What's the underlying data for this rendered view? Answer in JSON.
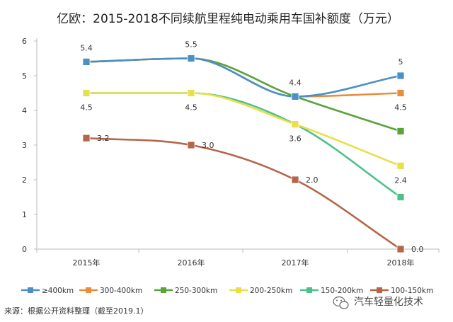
{
  "chart_data": {
    "type": "line",
    "title": "亿欧：2015-2018不同续航里程纯电动乘用车国补额度（万元）",
    "categories": [
      "2015年",
      "2016年",
      "2017年",
      "2018年"
    ],
    "ylim": [
      0,
      6
    ],
    "yticks": [
      0,
      1,
      2,
      3,
      4,
      5,
      6
    ],
    "grid": false,
    "legend_position": "bottom",
    "series": [
      {
        "name": "≥400km",
        "values": [
          5.4,
          5.5,
          4.4,
          5.0
        ],
        "color": "#4a90c4"
      },
      {
        "name": "300-400km",
        "values": [
          5.4,
          5.5,
          4.4,
          4.5
        ],
        "color": "#e98d3b"
      },
      {
        "name": "250-300km",
        "values": [
          5.4,
          5.5,
          4.4,
          3.4
        ],
        "color": "#5aa33a"
      },
      {
        "name": "200-250km",
        "values": [
          4.5,
          4.5,
          3.6,
          2.4
        ],
        "color": "#e8e04a"
      },
      {
        "name": "150-200km",
        "values": [
          4.5,
          4.5,
          3.6,
          1.5
        ],
        "color": "#4fc08d"
      },
      {
        "name": "100-150km",
        "values": [
          3.2,
          3.0,
          2.0,
          0.0
        ],
        "color": "#b5654a"
      }
    ],
    "annotations": [
      {
        "text": "5.4",
        "x": "2015年",
        "y": 5.4,
        "pos": "above"
      },
      {
        "text": "5.5",
        "x": "2016年",
        "y": 5.5,
        "pos": "above"
      },
      {
        "text": "4.4",
        "x": "2017年",
        "y": 4.4,
        "pos": "above"
      },
      {
        "text": "5",
        "x": "2018年",
        "y": 5.0,
        "pos": "above"
      },
      {
        "text": "4.5",
        "x": "2015年",
        "y": 4.5,
        "pos": "below"
      },
      {
        "text": "4.5",
        "x": "2016年",
        "y": 4.5,
        "pos": "below"
      },
      {
        "text": "3.6",
        "x": "2017年",
        "y": 3.6,
        "pos": "below"
      },
      {
        "text": "4.5",
        "x": "2018年",
        "y": 4.5,
        "pos": "below"
      },
      {
        "text": "2.4",
        "x": "2018年",
        "y": 2.4,
        "pos": "below"
      },
      {
        "text": "3.2",
        "x": "2015年",
        "y": 3.2,
        "pos": "right"
      },
      {
        "text": "3.0",
        "x": "2016年",
        "y": 3.0,
        "pos": "right"
      },
      {
        "text": "2.0",
        "x": "2017年",
        "y": 2.0,
        "pos": "right"
      },
      {
        "text": "0.0",
        "x": "2018年",
        "y": 0.0,
        "pos": "right"
      }
    ]
  },
  "footer": {
    "source": "来源：根据公开资料整理（截至2019.1）",
    "watermark": "汽车轻量化技术"
  }
}
